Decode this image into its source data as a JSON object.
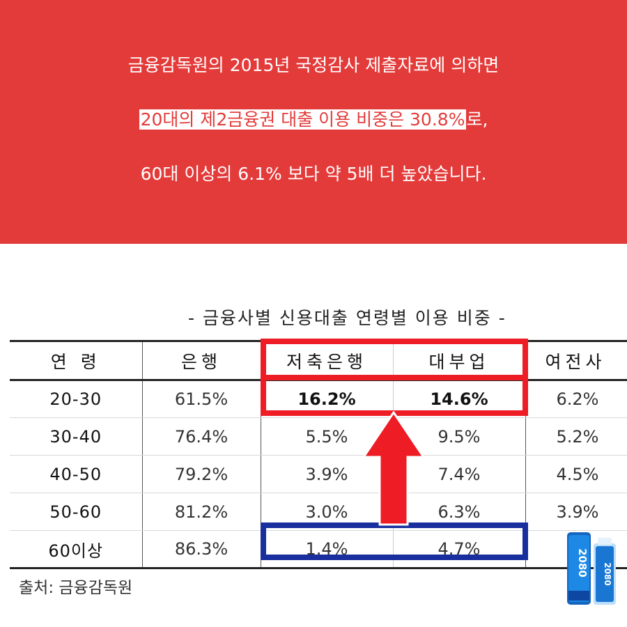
{
  "banner": {
    "line1": "금융감독원의 2015년 국정감사 제출자료에 의하면",
    "line2_highlight": "20대의 제2금융권 대출 이용 비중은 30.8%",
    "line2_rest": "로,",
    "line3": "60대 이상의 6.1% 보다 약 5배 더 높았습니다."
  },
  "table": {
    "caption": "- 금융사별 신용대출 연령별 이용 비중 -",
    "headers": [
      "연 령",
      "은행",
      "저축은행",
      "대부업",
      "여전사"
    ],
    "rows": [
      [
        "20-30",
        "61.5%",
        "16.2%",
        "14.6%",
        "6.2%"
      ],
      [
        "30-40",
        "76.4%",
        "5.5%",
        "9.5%",
        "5.2%"
      ],
      [
        "40-50",
        "79.2%",
        "3.9%",
        "7.4%",
        "4.5%"
      ],
      [
        "50-60",
        "81.2%",
        "3.0%",
        "6.3%",
        "3.9%"
      ],
      [
        "60이상",
        "86.3%",
        "1.4%",
        "4.7%",
        ""
      ]
    ]
  },
  "source": "출처: 금융감독원",
  "product": {
    "label": "2080",
    "icon": "toothpaste-product-icon"
  },
  "colors": {
    "banner_bg": "#e33b3a",
    "highlight_red": "#ee1c25",
    "highlight_blue": "#1a2f9e"
  }
}
